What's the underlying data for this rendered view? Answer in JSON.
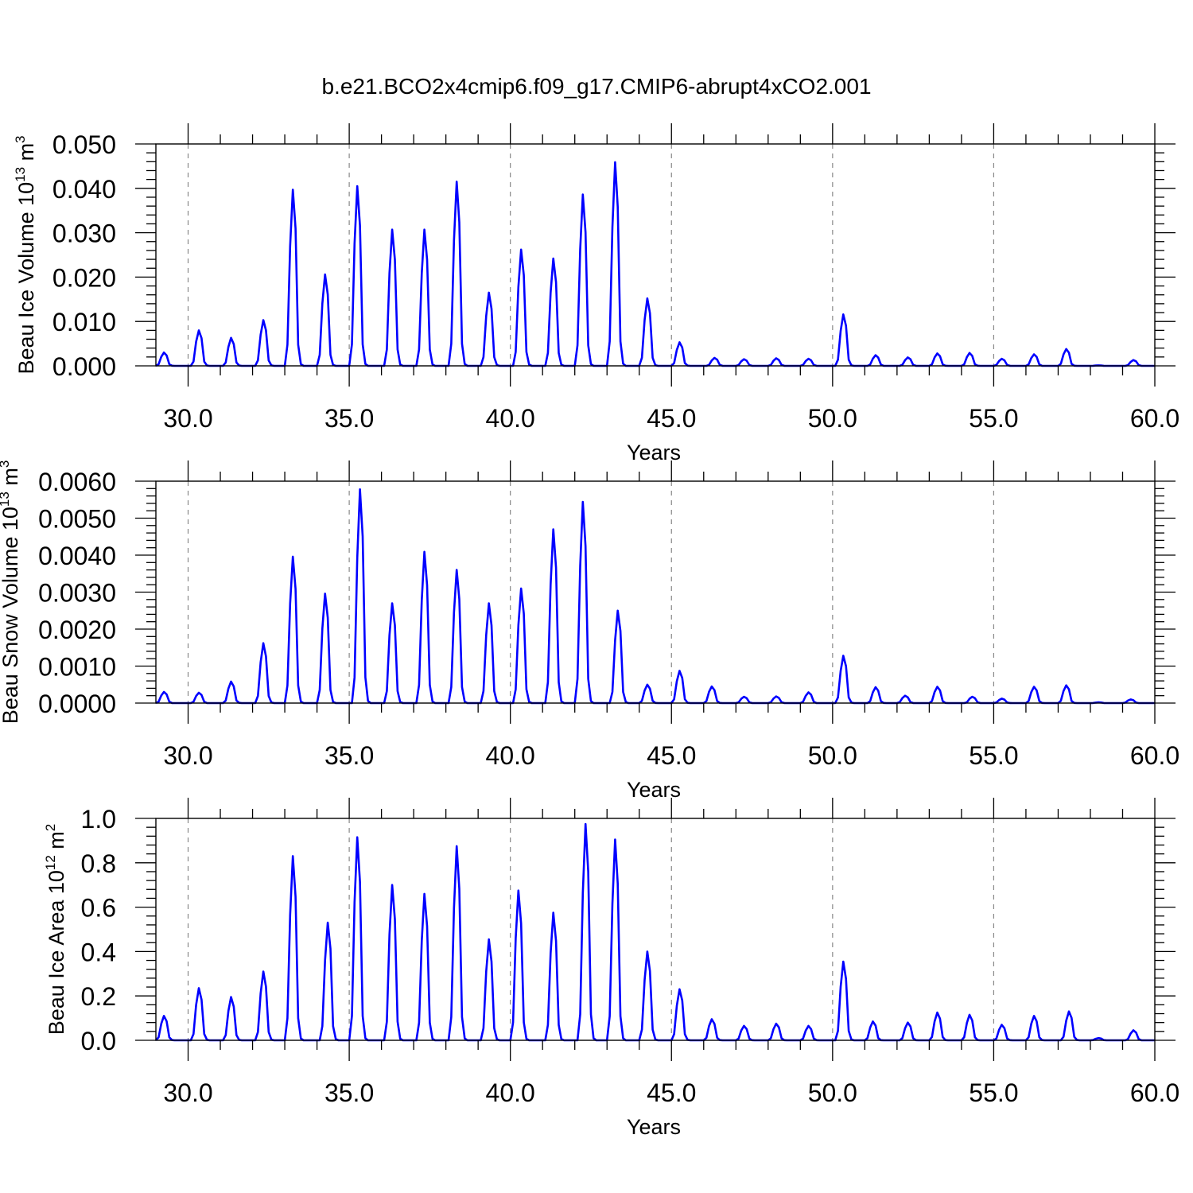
{
  "title": "b.e21.BCO2x4cmip6.f09_g17.CMIP6-abrupt4xCO2.001",
  "colors": {
    "line": "#0000ff",
    "axis": "#000000",
    "grid": "#888888"
  },
  "chart_data": [
    {
      "type": "line",
      "ylabel": {
        "main": "Beau Ice Volume 10",
        "sup": "13",
        "unit": " m",
        "unit_sup": "3"
      },
      "xlabel": "Years",
      "xlim": [
        29.0,
        60.0
      ],
      "ylim": [
        0.0,
        0.05
      ],
      "xticks": [
        "30.0",
        "35.0",
        "40.0",
        "45.0",
        "50.0",
        "55.0",
        "60.0"
      ],
      "yticks": [
        "0.000",
        "0.010",
        "0.020",
        "0.030",
        "0.040",
        "0.050"
      ],
      "grid": "vertical dashed at major x ticks",
      "series": [
        {
          "peaks": [
            [
              29.25,
              0.003
            ],
            [
              30.33,
              0.008
            ],
            [
              31.33,
              0.0063
            ],
            [
              32.33,
              0.0103
            ],
            [
              33.29,
              0.0397
            ],
            [
              34.29,
              0.0206
            ],
            [
              35.29,
              0.0405
            ],
            [
              36.33,
              0.0307
            ],
            [
              37.33,
              0.0307
            ],
            [
              38.33,
              0.0415
            ],
            [
              39.37,
              0.0165
            ],
            [
              40.33,
              0.0262
            ],
            [
              41.33,
              0.0242
            ],
            [
              42.29,
              0.0386
            ],
            [
              43.29,
              0.0459
            ],
            [
              44.29,
              0.0152
            ],
            [
              45.25,
              0.0053
            ],
            [
              46.33,
              0.0018
            ],
            [
              47.25,
              0.0015
            ],
            [
              48.25,
              0.0017
            ],
            [
              49.25,
              0.0016
            ],
            [
              50.33,
              0.0116
            ],
            [
              51.33,
              0.0024
            ],
            [
              52.33,
              0.0019
            ],
            [
              53.25,
              0.0028
            ],
            [
              54.29,
              0.0029
            ],
            [
              55.25,
              0.0016
            ],
            [
              56.29,
              0.0026
            ],
            [
              57.29,
              0.0038
            ],
            [
              58.25,
              0.0001
            ],
            [
              59.37,
              0.0013
            ]
          ]
        }
      ]
    },
    {
      "type": "line",
      "ylabel": {
        "main": "Beau Snow Volume 10",
        "sup": "13",
        "unit": " m",
        "unit_sup": "3"
      },
      "xlabel": "Years",
      "xlim": [
        29.0,
        60.0
      ],
      "ylim": [
        0.0,
        0.006
      ],
      "xticks": [
        "30.0",
        "35.0",
        "40.0",
        "45.0",
        "50.0",
        "55.0",
        "60.0"
      ],
      "yticks": [
        "0.0000",
        "0.0010",
        "0.0020",
        "0.0030",
        "0.0040",
        "0.0050",
        "0.0060"
      ],
      "grid": "vertical dashed at major x ticks",
      "series": [
        {
          "peaks": [
            [
              29.25,
              0.0003
            ],
            [
              30.33,
              0.00028
            ],
            [
              31.33,
              0.00058
            ],
            [
              32.33,
              0.00162
            ],
            [
              33.29,
              0.00396
            ],
            [
              34.29,
              0.00296
            ],
            [
              35.33,
              0.00578
            ],
            [
              36.37,
              0.0027
            ],
            [
              37.33,
              0.00409
            ],
            [
              38.33,
              0.0036
            ],
            [
              39.33,
              0.0027
            ],
            [
              40.33,
              0.0031
            ],
            [
              41.33,
              0.0047
            ],
            [
              42.29,
              0.00544
            ],
            [
              43.37,
              0.0025
            ],
            [
              44.29,
              0.0005
            ],
            [
              45.25,
              0.00087
            ],
            [
              46.29,
              0.00045
            ],
            [
              47.25,
              0.00017
            ],
            [
              48.25,
              0.00018
            ],
            [
              49.29,
              0.00029
            ],
            [
              50.33,
              0.00128
            ],
            [
              51.37,
              0.00043
            ],
            [
              52.29,
              0.0002
            ],
            [
              53.25,
              0.00044
            ],
            [
              54.33,
              0.00017
            ],
            [
              55.29,
              0.00012
            ],
            [
              56.29,
              0.00044
            ],
            [
              57.29,
              0.00048
            ],
            [
              58.25,
              2e-05
            ],
            [
              59.29,
              0.0001
            ]
          ]
        }
      ]
    },
    {
      "type": "line",
      "ylabel": {
        "main": "Beau Ice Area 10",
        "sup": "12",
        "unit": " m",
        "unit_sup": "2"
      },
      "xlabel": "Years",
      "xlim": [
        29.0,
        60.0
      ],
      "ylim": [
        0.0,
        1.0
      ],
      "xticks": [
        "30.0",
        "35.0",
        "40.0",
        "45.0",
        "50.0",
        "55.0",
        "60.0"
      ],
      "yticks": [
        "0.0",
        "0.2",
        "0.4",
        "0.6",
        "0.8",
        "1.0"
      ],
      "grid": "vertical dashed at major x ticks",
      "series": [
        {
          "peaks": [
            [
              29.25,
              0.11
            ],
            [
              30.33,
              0.235
            ],
            [
              31.33,
              0.195
            ],
            [
              32.33,
              0.31
            ],
            [
              33.29,
              0.83
            ],
            [
              34.33,
              0.53
            ],
            [
              35.29,
              0.915
            ],
            [
              36.37,
              0.7
            ],
            [
              37.33,
              0.66
            ],
            [
              38.33,
              0.875
            ],
            [
              39.33,
              0.455
            ],
            [
              40.29,
              0.675
            ],
            [
              41.37,
              0.575
            ],
            [
              42.33,
              0.975
            ],
            [
              43.29,
              0.905
            ],
            [
              44.29,
              0.4
            ],
            [
              45.25,
              0.23
            ],
            [
              46.25,
              0.095
            ],
            [
              47.25,
              0.065
            ],
            [
              48.25,
              0.075
            ],
            [
              49.25,
              0.065
            ],
            [
              50.33,
              0.355
            ],
            [
              51.29,
              0.085
            ],
            [
              52.33,
              0.08
            ],
            [
              53.25,
              0.125
            ],
            [
              54.29,
              0.115
            ],
            [
              55.25,
              0.07
            ],
            [
              56.29,
              0.11
            ],
            [
              57.33,
              0.13
            ],
            [
              58.25,
              0.01
            ],
            [
              59.37,
              0.045
            ]
          ]
        }
      ]
    }
  ]
}
